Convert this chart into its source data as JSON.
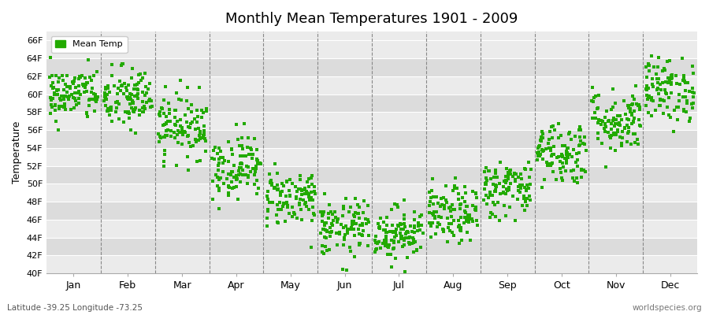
{
  "title": "Monthly Mean Temperatures 1901 - 2009",
  "ylabel": "Temperature",
  "subtitle_left": "Latitude -39.25 Longitude -73.25",
  "subtitle_right": "worldspecies.org",
  "dot_color": "#22AA00",
  "background_color": "#FFFFFF",
  "plot_bg_light": "#EBEBEB",
  "plot_bg_dark": "#DCDCDC",
  "grid_color": "#FFFFFF",
  "dashed_color": "#888888",
  "ylim": [
    40,
    67
  ],
  "yticks": [
    40,
    42,
    44,
    46,
    48,
    50,
    52,
    54,
    56,
    58,
    60,
    62,
    64,
    66
  ],
  "ytick_labels": [
    "40F",
    "42F",
    "44F",
    "46F",
    "48F",
    "50F",
    "52F",
    "54F",
    "56F",
    "58F",
    "60F",
    "62F",
    "64F",
    "66F"
  ],
  "months": [
    "Jan",
    "Feb",
    "Mar",
    "Apr",
    "May",
    "Jun",
    "Jul",
    "Aug",
    "Sep",
    "Oct",
    "Nov",
    "Dec"
  ],
  "n_years": 109,
  "seed": 42,
  "mean_temps_F": [
    60.0,
    59.5,
    56.5,
    52.0,
    48.5,
    45.0,
    44.5,
    46.5,
    49.5,
    53.5,
    57.0,
    60.5
  ],
  "std_temps_F": [
    1.5,
    1.8,
    1.8,
    1.8,
    1.6,
    1.6,
    1.5,
    1.6,
    1.6,
    1.8,
    1.8,
    1.8
  ],
  "marker_size": 2.5,
  "dpi": 100,
  "figsize": [
    9.0,
    4.0
  ]
}
